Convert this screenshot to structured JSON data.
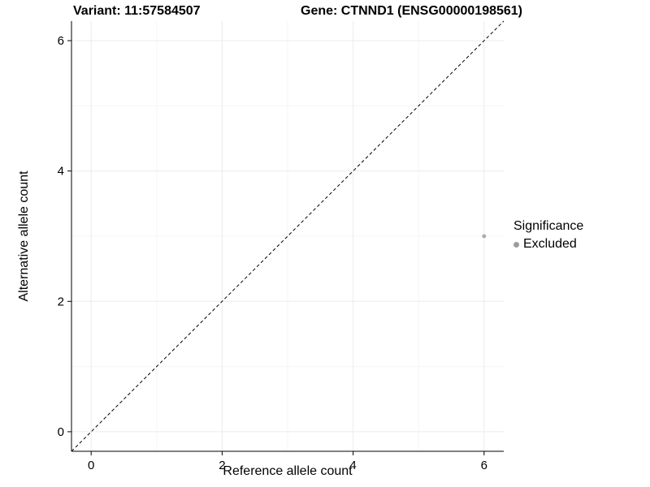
{
  "chart_data": {
    "type": "scatter",
    "title_left": "Variant: 11:57584507",
    "title_right": "Gene: CTNND1 (ENSG00000198561)",
    "xlabel": "Reference allele count",
    "ylabel": "Alternative allele count",
    "xlim": [
      -0.3,
      6.3
    ],
    "ylim": [
      -0.3,
      6.3
    ],
    "x_ticks": [
      0,
      2,
      4,
      6
    ],
    "y_ticks": [
      0,
      2,
      4,
      6
    ],
    "x_minor_ticks": [
      1,
      3,
      5
    ],
    "y_minor_ticks": [
      1,
      3,
      5
    ],
    "grid": true,
    "reference_line": {
      "kind": "identity",
      "slope": 1,
      "intercept": 0,
      "style": "dashed",
      "color": "#000000"
    },
    "series": [
      {
        "name": "Excluded",
        "color": "#aaaaaa",
        "points": [
          {
            "x": 6,
            "y": 3
          }
        ]
      }
    ],
    "legend": {
      "title": "Significance",
      "position": "right",
      "entries": [
        {
          "label": "Excluded",
          "color": "#9c9c9c"
        }
      ]
    },
    "colors": {
      "grid_major": "#ebebeb",
      "grid_minor": "#f6f6f6",
      "axis": "#000000",
      "tick_label": "#000000"
    }
  }
}
